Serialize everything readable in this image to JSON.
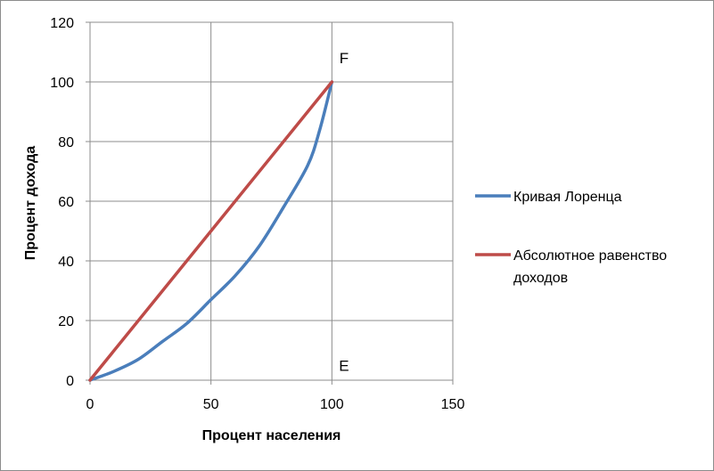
{
  "chart_data": {
    "type": "line",
    "title": "",
    "xlabel": "Процент населения",
    "ylabel": "Процент дохода",
    "xlim": [
      0,
      150
    ],
    "ylim": [
      0,
      120
    ],
    "x_ticks": [
      "0",
      "50",
      "100",
      "150"
    ],
    "y_ticks": [
      "0",
      "20",
      "40",
      "60",
      "80",
      "100",
      "120"
    ],
    "grid": true,
    "legend_position": "right",
    "series": [
      {
        "name": "Кривая Лоренца",
        "color": "#4a7ebb",
        "x": [
          0,
          10,
          20,
          30,
          40,
          50,
          60,
          70,
          80,
          90,
          95,
          100
        ],
        "y": [
          0,
          3,
          7,
          13,
          19,
          27,
          35,
          45,
          58,
          72,
          84,
          100
        ]
      },
      {
        "name": "Абсолютное равенство доходов",
        "legend_lines": [
          "Абсолютное равенство",
          "доходов"
        ],
        "color": "#be4b48",
        "x": [
          0,
          100
        ],
        "y": [
          0,
          100
        ]
      }
    ],
    "annotations": [
      {
        "text": "F",
        "x": 105,
        "y": 108
      },
      {
        "text": "E",
        "x": 105,
        "y": 5
      }
    ]
  }
}
